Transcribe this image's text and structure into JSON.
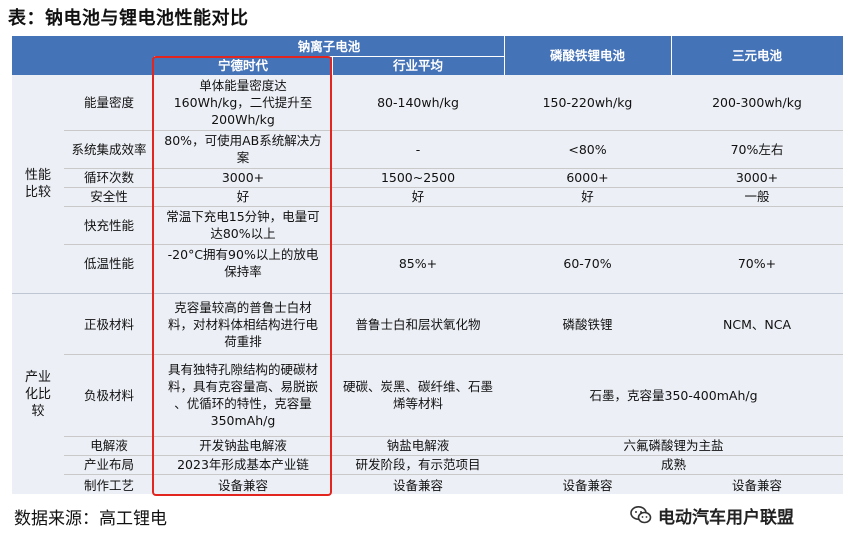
{
  "title": "表：钠电池与锂电池性能对比",
  "header": {
    "sodium": "钠离子电池",
    "catl": "宁德时代",
    "industry": "行业平均",
    "lfp": "磷酸铁锂电池",
    "ternary": "三元电池"
  },
  "groups": {
    "performance": "性能\n比较",
    "industrial": "产业\n化比\n较"
  },
  "rows": [
    {
      "label": "能量密度",
      "catl": "单体能量密度达\n160Wh/kg，二代提升至\n200Wh/kg",
      "industry": "80-140wh/kg",
      "lfp": "150-220wh/kg",
      "ternary": "200-300wh/kg"
    },
    {
      "label": "系统集成效率",
      "catl": "80%，可使用AB系统解决方\n案",
      "industry": "-",
      "lfp": "<80%",
      "ternary": "70%左右"
    },
    {
      "label": "循环次数",
      "catl": "3000+",
      "industry": "1500~2500",
      "lfp": "6000+",
      "ternary": "3000+"
    },
    {
      "label": "安全性",
      "catl": "好",
      "industry": "好",
      "lfp": "好",
      "ternary": "一般"
    },
    {
      "label": "快充性能",
      "catl": "常温下充电15分钟，电量可\n达80%以上",
      "industry": "",
      "lfp": "",
      "ternary": ""
    },
    {
      "label": "低温性能",
      "catl": "-20°C拥有90%以上的放电\n保持率",
      "industry": "85%+",
      "lfp": "60-70%",
      "ternary": "70%+"
    },
    {
      "label": "正极材料",
      "catl": "克容量较高的普鲁士白材\n料，对材料体相结构进行电\n荷重排",
      "industry": "普鲁士白和层状氧化物",
      "lfp": "磷酸铁锂",
      "ternary": "NCM、NCA"
    },
    {
      "label": "负极材料",
      "catl": "具有独特孔隙结构的硬碳材\n料，具有克容量高、易脱嵌\n、优循环的特性，克容量\n350mAh/g",
      "industry": "硬碳、炭黑、碳纤维、石墨\n烯等材料",
      "lithium_merged": "石墨，克容量350-400mAh/g"
    },
    {
      "label": "电解液",
      "catl": "开发钠盐电解液",
      "industry": "钠盐电解液",
      "lithium_merged": "六氟磷酸锂为主盐"
    },
    {
      "label": "产业布局",
      "catl": "2023年形成基本产业链",
      "industry": "研发阶段，有示范项目",
      "lithium_merged": "成熟"
    },
    {
      "label": "制作工艺",
      "catl": "设备兼容",
      "industry": "设备兼容",
      "lfp": "设备兼容",
      "ternary": "设备兼容"
    }
  ],
  "footer": {
    "source": "数据来源：高工锂电",
    "brand": "电动汽车用户联盟",
    "brand_icon": "wechat-icon"
  },
  "colors": {
    "header_bg": "#4573b8",
    "row_bg": "#eceff5",
    "highlight_border": "#e2251f"
  }
}
